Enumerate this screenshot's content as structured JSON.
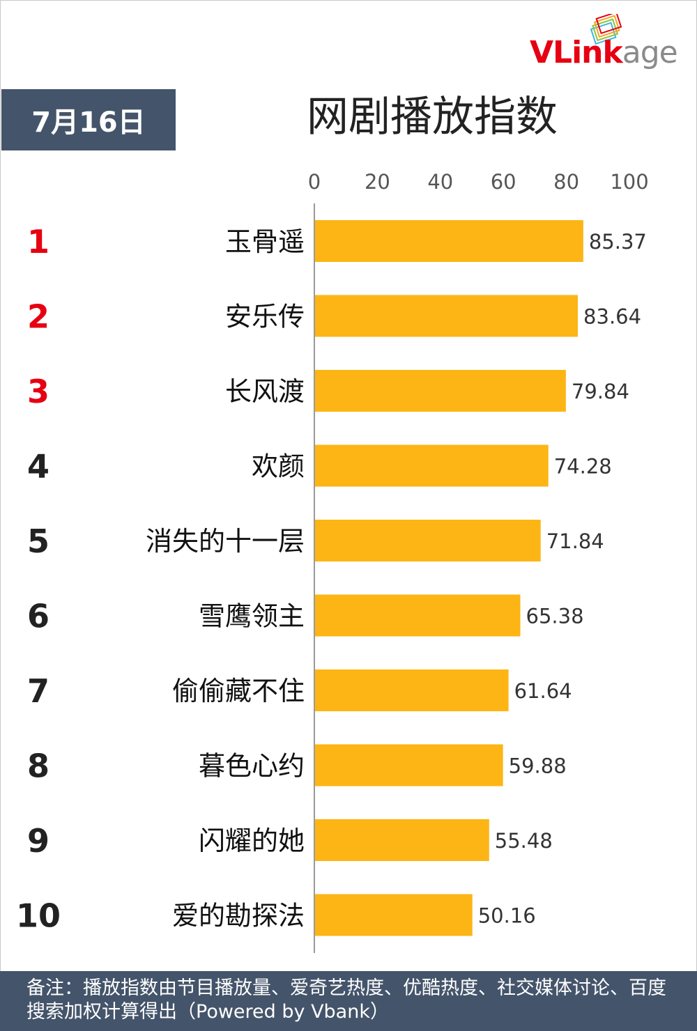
{
  "header": {
    "date_label": "7月16日",
    "title": "网剧播放指数",
    "logo": {
      "text_red": "VLink",
      "text_grey": "age"
    }
  },
  "colors": {
    "bar": "#fdb515",
    "header_bg": "#44546a",
    "rank_top3": "#e60012",
    "rank_rest": "#222222"
  },
  "chart_data": {
    "type": "bar",
    "orientation": "horizontal",
    "title": "网剧播放指数",
    "xlim": [
      0,
      100
    ],
    "x_ticks": [
      0,
      20,
      40,
      60,
      80,
      100
    ],
    "ranks": [
      "1",
      "2",
      "3",
      "4",
      "5",
      "6",
      "7",
      "8",
      "9",
      "10"
    ],
    "categories": [
      "玉骨遥",
      "安乐传",
      "长风渡",
      "欢颜",
      "消失的十一层",
      "雪鹰领主",
      "偷偷藏不住",
      "暮色心约",
      "闪耀的她",
      "爱的勘探法"
    ],
    "values": [
      85.37,
      83.64,
      79.84,
      74.28,
      71.84,
      65.38,
      61.64,
      59.88,
      55.48,
      50.16
    ],
    "value_labels": [
      "85.37",
      "83.64",
      "79.84",
      "74.28",
      "71.84",
      "65.38",
      "61.64",
      "59.88",
      "55.48",
      "50.16"
    ],
    "grid": false,
    "legend": "none"
  },
  "footer": {
    "note": "备注：播放指数由节目播放量、爱奇艺热度、优酷热度、社交媒体讨论、百度搜索加权计算得出（Powered by Vbank）"
  }
}
